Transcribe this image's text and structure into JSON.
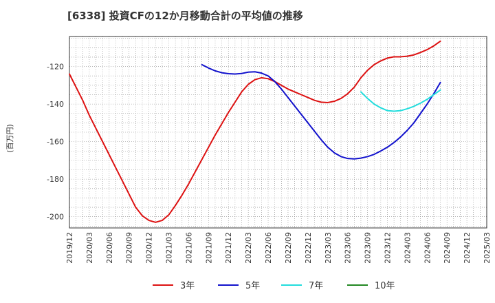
{
  "chart_data": {
    "type": "line",
    "title": "[6338]  投資CFの12か月移動合計の平均値の推移",
    "ylabel": "(百万円)",
    "xlabel": "",
    "ylim": [
      -206,
      -104
    ],
    "y_ticks": [
      -120,
      -140,
      -160,
      -180,
      -200
    ],
    "x_ticks": [
      "2019/12",
      "2020/03",
      "2020/06",
      "2020/09",
      "2020/12",
      "2021/03",
      "2021/06",
      "2021/09",
      "2021/12",
      "2022/03",
      "2022/06",
      "2022/09",
      "2022/12",
      "2023/03",
      "2023/06",
      "2023/09",
      "2023/12",
      "2024/03",
      "2024/06",
      "2024/09",
      "2024/12",
      "2025/03"
    ],
    "grid": true,
    "legend_position": "bottom",
    "series": [
      {
        "name": "3年",
        "color": "#dd1111",
        "points": [
          [
            "2019/12",
            -124
          ],
          [
            "2020/01",
            -131
          ],
          [
            "2020/02",
            -138
          ],
          [
            "2020/03",
            -146
          ],
          [
            "2020/04",
            -153
          ],
          [
            "2020/05",
            -160
          ],
          [
            "2020/06",
            -167
          ],
          [
            "2020/07",
            -174
          ],
          [
            "2020/08",
            -181
          ],
          [
            "2020/09",
            -188
          ],
          [
            "2020/10",
            -195
          ],
          [
            "2020/11",
            -199.5
          ],
          [
            "2020/12",
            -202
          ],
          [
            "2021/01",
            -203
          ],
          [
            "2021/02",
            -202
          ],
          [
            "2021/03",
            -199
          ],
          [
            "2021/04",
            -194
          ],
          [
            "2021/05",
            -188.5
          ],
          [
            "2021/06",
            -182.5
          ],
          [
            "2021/07",
            -176
          ],
          [
            "2021/08",
            -169.5
          ],
          [
            "2021/09",
            -163
          ],
          [
            "2021/10",
            -156.5
          ],
          [
            "2021/11",
            -150.5
          ],
          [
            "2021/12",
            -144.5
          ],
          [
            "2022/01",
            -139
          ],
          [
            "2022/02",
            -133.5
          ],
          [
            "2022/03",
            -129.5
          ],
          [
            "2022/04",
            -127
          ],
          [
            "2022/05",
            -126
          ],
          [
            "2022/06",
            -126.5
          ],
          [
            "2022/07",
            -128
          ],
          [
            "2022/08",
            -130
          ],
          [
            "2022/09",
            -132
          ],
          [
            "2022/10",
            -133.5
          ],
          [
            "2022/11",
            -135
          ],
          [
            "2022/12",
            -136.5
          ],
          [
            "2023/01",
            -138
          ],
          [
            "2023/02",
            -139
          ],
          [
            "2023/03",
            -139.2
          ],
          [
            "2023/04",
            -138.5
          ],
          [
            "2023/05",
            -137
          ],
          [
            "2023/06",
            -134.5
          ],
          [
            "2023/07",
            -131
          ],
          [
            "2023/08",
            -126
          ],
          [
            "2023/09",
            -122
          ],
          [
            "2023/10",
            -119
          ],
          [
            "2023/11",
            -117
          ],
          [
            "2023/12",
            -115.5
          ],
          [
            "2024/01",
            -114.8
          ],
          [
            "2024/02",
            -114.8
          ],
          [
            "2024/03",
            -114.5
          ],
          [
            "2024/04",
            -113.8
          ],
          [
            "2024/05",
            -112.5
          ],
          [
            "2024/06",
            -111
          ],
          [
            "2024/07",
            -109
          ],
          [
            "2024/08",
            -106.5
          ]
        ]
      },
      {
        "name": "5年",
        "color": "#1111cc",
        "points": [
          [
            "2021/08",
            -119
          ],
          [
            "2021/09",
            -120.8
          ],
          [
            "2021/10",
            -122.3
          ],
          [
            "2021/11",
            -123.3
          ],
          [
            "2021/12",
            -123.8
          ],
          [
            "2022/01",
            -124
          ],
          [
            "2022/02",
            -123.7
          ],
          [
            "2022/03",
            -123
          ],
          [
            "2022/04",
            -122.8
          ],
          [
            "2022/05",
            -123.5
          ],
          [
            "2022/06",
            -125
          ],
          [
            "2022/07",
            -128
          ],
          [
            "2022/08",
            -132
          ],
          [
            "2022/09",
            -136.5
          ],
          [
            "2022/10",
            -141
          ],
          [
            "2022/11",
            -145.5
          ],
          [
            "2022/12",
            -150
          ],
          [
            "2023/01",
            -154.5
          ],
          [
            "2023/02",
            -159
          ],
          [
            "2023/03",
            -163
          ],
          [
            "2023/04",
            -166
          ],
          [
            "2023/05",
            -168
          ],
          [
            "2023/06",
            -169
          ],
          [
            "2023/07",
            -169.2
          ],
          [
            "2023/08",
            -168.8
          ],
          [
            "2023/09",
            -168
          ],
          [
            "2023/10",
            -166.8
          ],
          [
            "2023/11",
            -165
          ],
          [
            "2023/12",
            -163
          ],
          [
            "2024/01",
            -160.5
          ],
          [
            "2024/02",
            -157.5
          ],
          [
            "2024/03",
            -154
          ],
          [
            "2024/04",
            -150
          ],
          [
            "2024/05",
            -145
          ],
          [
            "2024/06",
            -140
          ],
          [
            "2024/07",
            -134.5
          ],
          [
            "2024/08",
            -128.5
          ]
        ]
      },
      {
        "name": "7年",
        "color": "#22dddd",
        "points": [
          [
            "2023/08",
            -133.5
          ],
          [
            "2023/09",
            -137
          ],
          [
            "2023/10",
            -140
          ],
          [
            "2023/11",
            -142
          ],
          [
            "2023/12",
            -143.5
          ],
          [
            "2024/01",
            -143.8
          ],
          [
            "2024/02",
            -143.5
          ],
          [
            "2024/03",
            -142.5
          ],
          [
            "2024/04",
            -141.2
          ],
          [
            "2024/05",
            -139.5
          ],
          [
            "2024/06",
            -137.5
          ],
          [
            "2024/07",
            -135
          ],
          [
            "2024/08",
            -132.5
          ]
        ]
      },
      {
        "name": "10年",
        "color": "#228822",
        "points": []
      }
    ]
  }
}
